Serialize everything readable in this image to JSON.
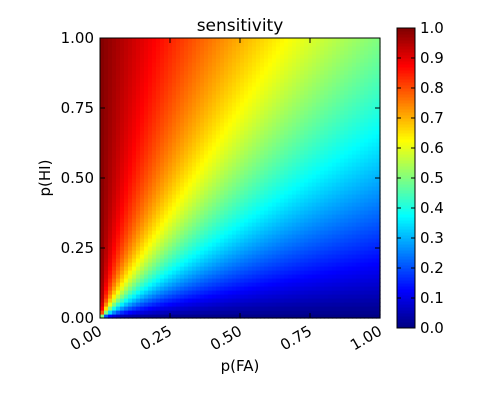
{
  "chart_data": {
    "type": "heatmap",
    "title": "sensitivity",
    "xlabel": "p(FA)",
    "ylabel": "p(HI)",
    "xlim": [
      0,
      1
    ],
    "ylim": [
      0,
      1
    ],
    "x_ticks": [
      "0.00",
      "0.25",
      "0.50",
      "0.75",
      "1.00"
    ],
    "y_ticks": [
      "0.00",
      "0.25",
      "0.50",
      "0.75",
      "1.00"
    ],
    "x_tick_values": [
      0,
      0.25,
      0.5,
      0.75,
      1
    ],
    "y_tick_values": [
      0,
      0.25,
      0.5,
      0.75,
      1
    ],
    "colormap": "jet",
    "colorbar": {
      "range": [
        0,
        1
      ],
      "ticks": [
        "0.0",
        "0.1",
        "0.2",
        "0.3",
        "0.4",
        "0.5",
        "0.6",
        "0.7",
        "0.8",
        "0.9",
        "1.0"
      ],
      "tick_values": [
        0,
        0.1,
        0.2,
        0.3,
        0.4,
        0.5,
        0.6,
        0.7,
        0.8,
        0.9,
        1.0
      ]
    },
    "grid": false,
    "samples": [
      {
        "x": 0.0,
        "y": 1.0,
        "value": 1.0
      },
      {
        "x": 0.25,
        "y": 1.0,
        "value": 0.8
      },
      {
        "x": 0.5,
        "y": 1.0,
        "value": 0.67
      },
      {
        "x": 0.75,
        "y": 1.0,
        "value": 0.57
      },
      {
        "x": 1.0,
        "y": 1.0,
        "value": 0.5
      },
      {
        "x": 0.5,
        "y": 0.5,
        "value": 0.5
      },
      {
        "x": 0.5,
        "y": 0.25,
        "value": 0.33
      },
      {
        "x": 1.0,
        "y": 0.0,
        "value": 0.0
      }
    ]
  }
}
